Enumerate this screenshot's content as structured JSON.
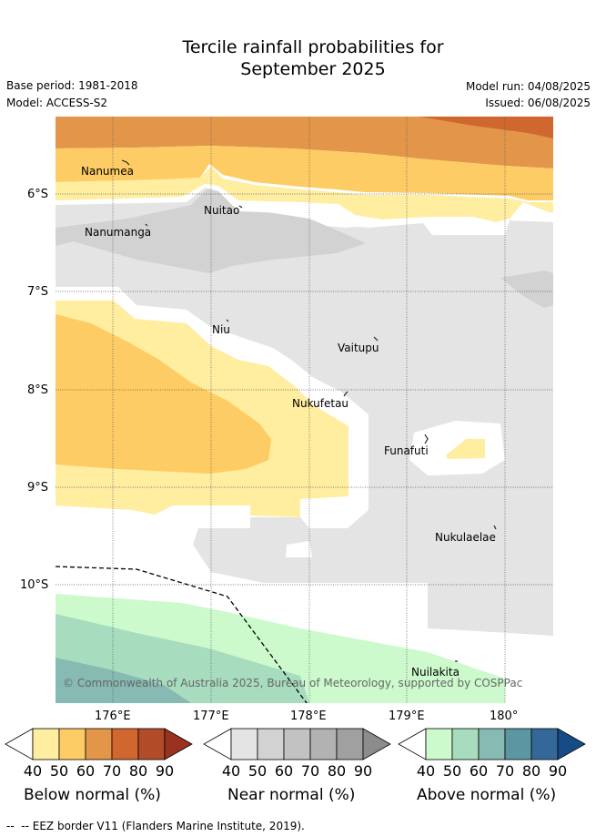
{
  "title": {
    "line1": "Tercile rainfall probabilities for",
    "line2": "September 2025"
  },
  "meta": {
    "base_period": "Base period: 1981-2018",
    "model": "Model: ACCESS-S2",
    "model_run": "Model run: 04/08/2025",
    "issued": "Issued: 06/08/2025"
  },
  "map": {
    "lat_labels": [
      "6°S",
      "7°S",
      "8°S",
      "9°S",
      "10°S"
    ],
    "lon_labels": [
      "176°E",
      "177°E",
      "178°E",
      "179°E",
      "180°"
    ],
    "places": [
      "Nanumea",
      "Nuitao",
      "Nanumanga",
      "Niu",
      "Vaitupu",
      "Nukufetau",
      "Funafuti",
      "Nukulaelae",
      "Nuilakita"
    ],
    "copyright": "© Commonwealth of Australia 2025, Bureau of Meteorology, supported by COSPPac"
  },
  "colorbars": [
    {
      "label": "Below normal (%)",
      "ticks": [
        "40",
        "50",
        "60",
        "70",
        "80",
        "90"
      ],
      "colors": [
        "#ffeda0",
        "#fecc64",
        "#e3964a",
        "#d0672f",
        "#b24c28",
        "#9b3120"
      ]
    },
    {
      "label": "Near normal (%)",
      "ticks": [
        "40",
        "50",
        "60",
        "70",
        "80",
        "90"
      ],
      "colors": [
        "#e4e4e4",
        "#d2d2d2",
        "#c2c2c2",
        "#b2b2b2",
        "#a0a0a0",
        "#8c8c8c"
      ]
    },
    {
      "label": "Above normal (%)",
      "ticks": [
        "40",
        "50",
        "60",
        "70",
        "80",
        "90"
      ],
      "colors": [
        "#ccfacc",
        "#a8dcbe",
        "#86bab2",
        "#5c96a2",
        "#35689a",
        "#174b86"
      ]
    }
  ],
  "footer": {
    "eez_label": "-- EEZ border V11 (Flanders Marine Institute, 2019)."
  },
  "colors": {
    "grid": "#555555",
    "eez": "#000000",
    "land": "#222222"
  }
}
